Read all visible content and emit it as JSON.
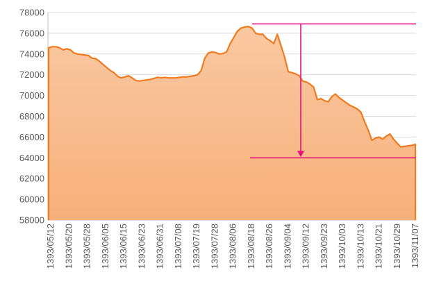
{
  "colors": {
    "line": "#F07B1E",
    "fill_top": "#F9C8A2",
    "fill_bottom": "#F7B07A",
    "annotation": "#E8107F",
    "grid": "#D9D9D9",
    "axis": "#BFBFBF"
  },
  "chart_data": {
    "type": "area",
    "title": "",
    "xlabel": "",
    "ylabel": "",
    "ylim": [
      58000,
      78000
    ],
    "y_ticks": [
      58000,
      60000,
      62000,
      64000,
      66000,
      68000,
      70000,
      72000,
      74000,
      76000,
      78000
    ],
    "y_tick_labels": [
      "58000",
      "60000",
      "62000",
      "64000",
      "66000",
      "68000",
      "70000",
      "72000",
      "74000",
      "76000",
      "78000"
    ],
    "x_tick_labels": [
      "1393/05/12",
      "1393/05/20",
      "1393/05/28",
      "1393/06/05",
      "1393/06/15",
      "1393/06/23",
      "1393/06/31",
      "1393/07/08",
      "1393/07/19",
      "1393/07/28",
      "1393/08/06",
      "1393/08/18",
      "1393/08/26",
      "1393/09/04",
      "1393/09/12",
      "1393/09/23",
      "1393/10/03",
      "1393/10/13",
      "1393/10/21",
      "1393/10/29",
      "1393/11/07"
    ],
    "grid": true,
    "legend": "none",
    "series": [
      {
        "values": [
          74600,
          74700,
          74700,
          74600,
          74400,
          74500,
          74400,
          74100,
          74000,
          73950,
          73900,
          73850,
          73600,
          73550,
          73300,
          73000,
          72700,
          72400,
          72200,
          71850,
          71700,
          71800,
          71900,
          71700,
          71450,
          71400,
          71450,
          71500,
          71550,
          71650,
          71750,
          71700,
          71750,
          71700,
          71700,
          71700,
          71750,
          71800,
          71800,
          71850,
          71900,
          72000,
          72400,
          73600,
          74100,
          74200,
          74150,
          74000,
          74050,
          74200,
          75000,
          75600,
          76200,
          76500,
          76600,
          76650,
          76500,
          76000,
          75900,
          75900,
          75500,
          75300,
          75000,
          75900,
          74800,
          73700,
          72300,
          72200,
          72100,
          71900,
          71400,
          71300,
          71100,
          70800,
          69600,
          69700,
          69500,
          69400,
          69900,
          70150,
          69800,
          69550,
          69300,
          69050,
          68900,
          68700,
          68400,
          67500,
          66700,
          65700,
          65900,
          66000,
          65800,
          66100,
          66300,
          65800,
          65400,
          65050,
          65100,
          65150,
          65200,
          65300
        ]
      }
    ],
    "annotations": {
      "high_level": 76900,
      "low_level": 64000,
      "drop_arrow": {
        "from": 76900,
        "to": 64000
      }
    }
  }
}
